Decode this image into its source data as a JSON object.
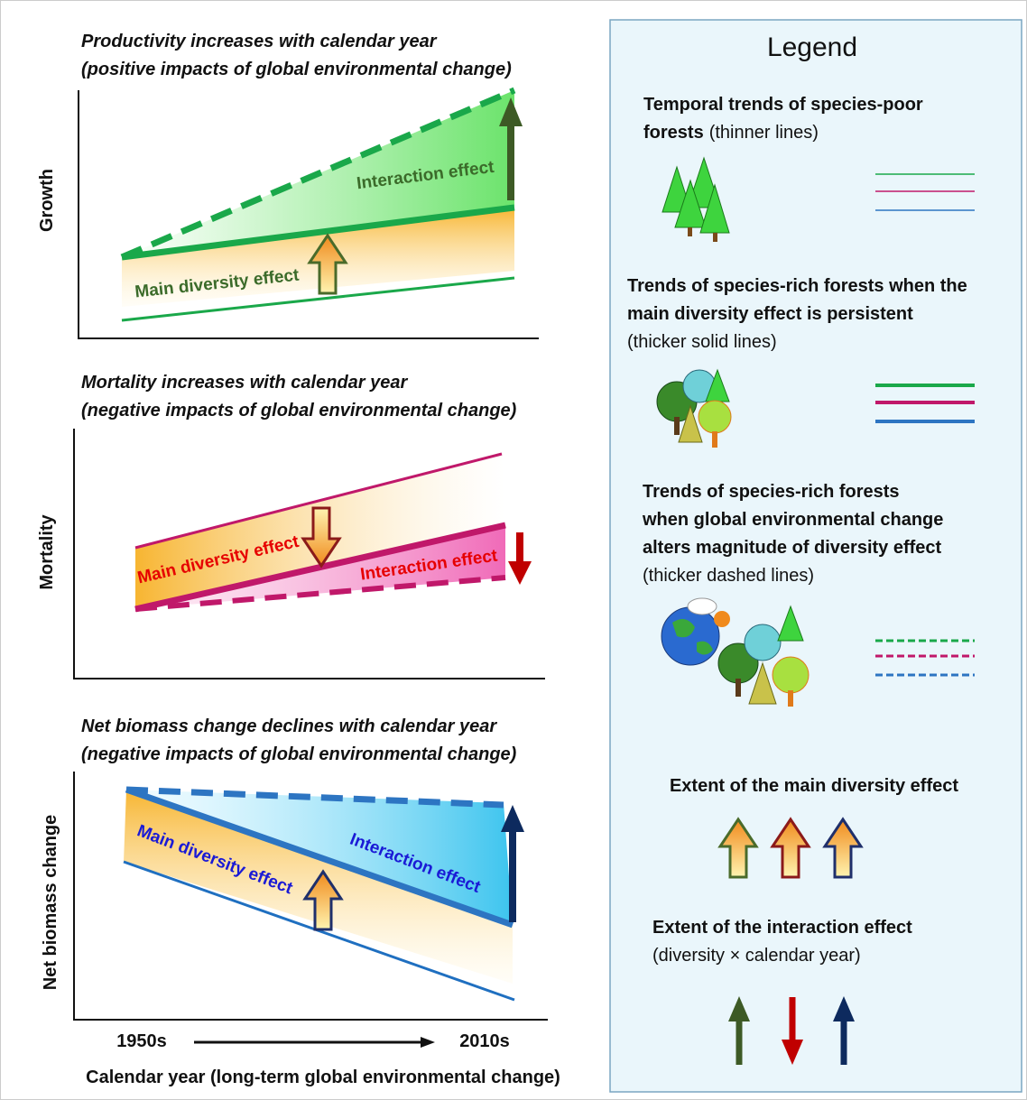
{
  "panels": [
    {
      "title": [
        "Productivity increases with calendar year",
        "(positive impacts of global environmental change)"
      ],
      "y_label": "Growth",
      "interaction_label": "Interaction effect",
      "main_label": "Main diversity effect"
    },
    {
      "title": [
        "Mortality increases with calendar year",
        "(negative impacts of global environmental change)"
      ],
      "y_label": "Mortality",
      "main_label": "Main diversity effect",
      "interaction_label": "Interaction effect"
    },
    {
      "title": [
        "Net biomass change declines with calendar year",
        "(negative impacts of global environmental change)"
      ],
      "y_label": "Net biomass change",
      "main_label": "Main diversity effect",
      "interaction_label": "Interaction effect"
    }
  ],
  "x_axis": {
    "start": "1950s",
    "end": "2010s",
    "label": "Calendar year (long-term global environmental change)"
  },
  "legend": {
    "title": "Legend",
    "poor": {
      "title": [
        "Temporal trends of species-poor",
        "forests"
      ],
      "note": "(thinner lines)"
    },
    "rich_solid": {
      "title": [
        "Trends of species-rich forests when the",
        "main diversity effect is persistent"
      ],
      "note": "(thicker solid lines)"
    },
    "rich_dashed": {
      "title": [
        "Trends of species-rich forests",
        "when global environmental change",
        "alters magnitude of diversity effect"
      ],
      "note": "(thicker dashed lines)"
    },
    "main_effect": "Extent of the main diversity effect",
    "interaction_effect": {
      "title": "Extent of the interaction effect",
      "note": "(diversity × calendar year)"
    }
  }
}
